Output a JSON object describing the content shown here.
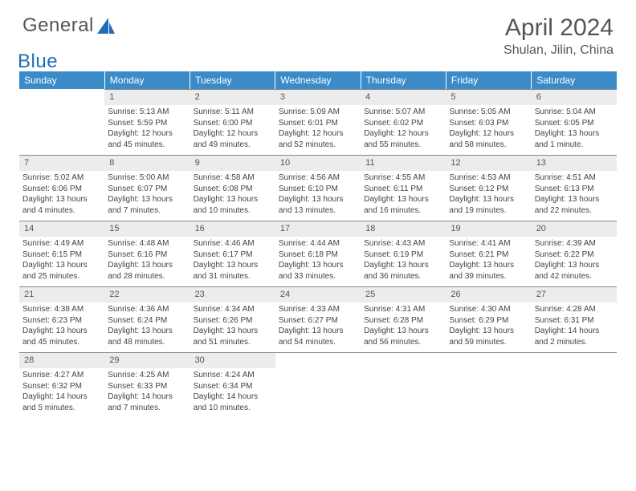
{
  "brand": {
    "word1": "General",
    "word2": "Blue"
  },
  "title": "April 2024",
  "location": "Shulan, Jilin, China",
  "colors": {
    "header_bg": "#3b8bc9",
    "header_text": "#ffffff",
    "daynum_bg": "#ececec",
    "rule": "#888888",
    "brand_blue": "#1e6fb8",
    "text": "#444444"
  },
  "weekdays": [
    "Sunday",
    "Monday",
    "Tuesday",
    "Wednesday",
    "Thursday",
    "Friday",
    "Saturday"
  ],
  "days": {
    "1": {
      "sunrise": "5:13 AM",
      "sunset": "5:59 PM",
      "daylight": "12 hours and 45 minutes."
    },
    "2": {
      "sunrise": "5:11 AM",
      "sunset": "6:00 PM",
      "daylight": "12 hours and 49 minutes."
    },
    "3": {
      "sunrise": "5:09 AM",
      "sunset": "6:01 PM",
      "daylight": "12 hours and 52 minutes."
    },
    "4": {
      "sunrise": "5:07 AM",
      "sunset": "6:02 PM",
      "daylight": "12 hours and 55 minutes."
    },
    "5": {
      "sunrise": "5:05 AM",
      "sunset": "6:03 PM",
      "daylight": "12 hours and 58 minutes."
    },
    "6": {
      "sunrise": "5:04 AM",
      "sunset": "6:05 PM",
      "daylight": "13 hours and 1 minute."
    },
    "7": {
      "sunrise": "5:02 AM",
      "sunset": "6:06 PM",
      "daylight": "13 hours and 4 minutes."
    },
    "8": {
      "sunrise": "5:00 AM",
      "sunset": "6:07 PM",
      "daylight": "13 hours and 7 minutes."
    },
    "9": {
      "sunrise": "4:58 AM",
      "sunset": "6:08 PM",
      "daylight": "13 hours and 10 minutes."
    },
    "10": {
      "sunrise": "4:56 AM",
      "sunset": "6:10 PM",
      "daylight": "13 hours and 13 minutes."
    },
    "11": {
      "sunrise": "4:55 AM",
      "sunset": "6:11 PM",
      "daylight": "13 hours and 16 minutes."
    },
    "12": {
      "sunrise": "4:53 AM",
      "sunset": "6:12 PM",
      "daylight": "13 hours and 19 minutes."
    },
    "13": {
      "sunrise": "4:51 AM",
      "sunset": "6:13 PM",
      "daylight": "13 hours and 22 minutes."
    },
    "14": {
      "sunrise": "4:49 AM",
      "sunset": "6:15 PM",
      "daylight": "13 hours and 25 minutes."
    },
    "15": {
      "sunrise": "4:48 AM",
      "sunset": "6:16 PM",
      "daylight": "13 hours and 28 minutes."
    },
    "16": {
      "sunrise": "4:46 AM",
      "sunset": "6:17 PM",
      "daylight": "13 hours and 31 minutes."
    },
    "17": {
      "sunrise": "4:44 AM",
      "sunset": "6:18 PM",
      "daylight": "13 hours and 33 minutes."
    },
    "18": {
      "sunrise": "4:43 AM",
      "sunset": "6:19 PM",
      "daylight": "13 hours and 36 minutes."
    },
    "19": {
      "sunrise": "4:41 AM",
      "sunset": "6:21 PM",
      "daylight": "13 hours and 39 minutes."
    },
    "20": {
      "sunrise": "4:39 AM",
      "sunset": "6:22 PM",
      "daylight": "13 hours and 42 minutes."
    },
    "21": {
      "sunrise": "4:38 AM",
      "sunset": "6:23 PM",
      "daylight": "13 hours and 45 minutes."
    },
    "22": {
      "sunrise": "4:36 AM",
      "sunset": "6:24 PM",
      "daylight": "13 hours and 48 minutes."
    },
    "23": {
      "sunrise": "4:34 AM",
      "sunset": "6:26 PM",
      "daylight": "13 hours and 51 minutes."
    },
    "24": {
      "sunrise": "4:33 AM",
      "sunset": "6:27 PM",
      "daylight": "13 hours and 54 minutes."
    },
    "25": {
      "sunrise": "4:31 AM",
      "sunset": "6:28 PM",
      "daylight": "13 hours and 56 minutes."
    },
    "26": {
      "sunrise": "4:30 AM",
      "sunset": "6:29 PM",
      "daylight": "13 hours and 59 minutes."
    },
    "27": {
      "sunrise": "4:28 AM",
      "sunset": "6:31 PM",
      "daylight": "14 hours and 2 minutes."
    },
    "28": {
      "sunrise": "4:27 AM",
      "sunset": "6:32 PM",
      "daylight": "14 hours and 5 minutes."
    },
    "29": {
      "sunrise": "4:25 AM",
      "sunset": "6:33 PM",
      "daylight": "14 hours and 7 minutes."
    },
    "30": {
      "sunrise": "4:24 AM",
      "sunset": "6:34 PM",
      "daylight": "14 hours and 10 minutes."
    }
  },
  "labels": {
    "sunrise": "Sunrise:",
    "sunset": "Sunset:",
    "daylight": "Daylight:"
  },
  "layout": {
    "start_weekday": 1,
    "num_days": 30,
    "rows": 5
  }
}
